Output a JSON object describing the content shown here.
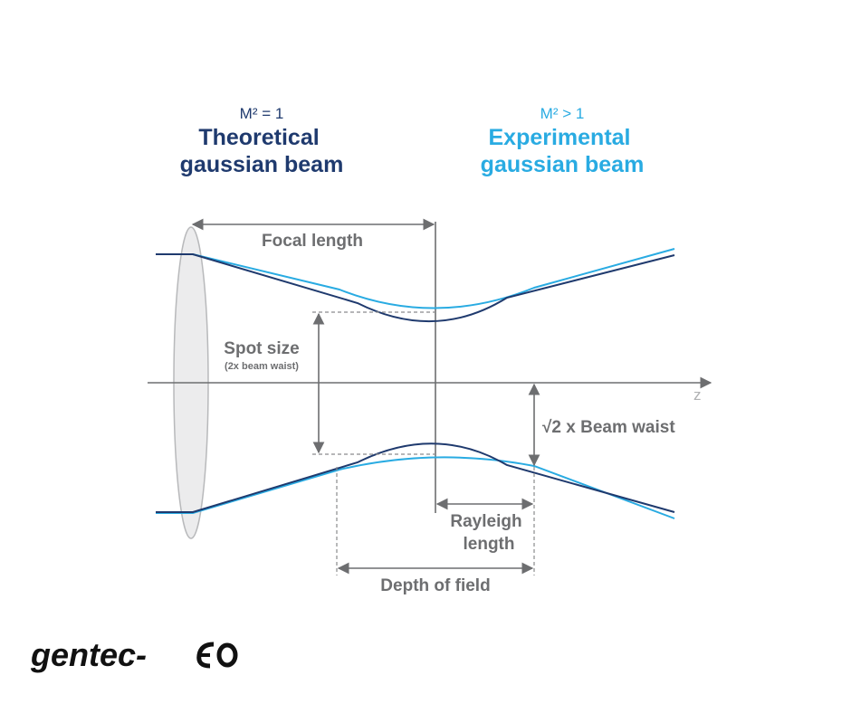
{
  "legend": {
    "theoretical": {
      "label": "M² = 1",
      "title": [
        "Theoretical",
        "gaussian beam"
      ]
    },
    "experimental": {
      "label": "M² > 1",
      "title": [
        "Experimental",
        "gaussian beam"
      ]
    }
  },
  "labels": {
    "axis": "z",
    "focal_length": "Focal length",
    "spot_size": "Spot size",
    "spot_size_note": "(2x beam waist)",
    "sqrt2_beam_waist": "√2 x Beam waist",
    "rayleigh_length": [
      "Rayleigh",
      "length"
    ],
    "depth_of_field": "Depth of field"
  },
  "logo": "gentec-"
}
